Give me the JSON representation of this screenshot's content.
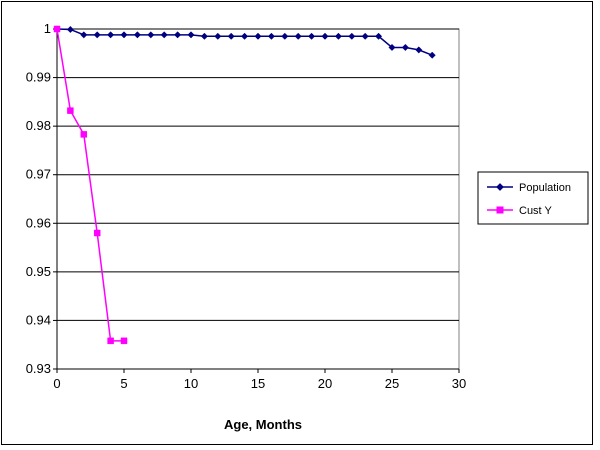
{
  "chart_data": {
    "type": "line",
    "title": "",
    "xlabel": "Age, Months",
    "ylabel": "",
    "xlim": [
      0,
      30
    ],
    "ylim": [
      0.93,
      1.0
    ],
    "xticks": [
      0,
      5,
      10,
      15,
      20,
      25,
      30
    ],
    "xtick_labels": [
      "0",
      "5",
      "10",
      "15",
      "20",
      "25",
      "30"
    ],
    "yticks": [
      0.93,
      0.94,
      0.95,
      0.96,
      0.97,
      0.98,
      0.99,
      1.0
    ],
    "ytick_labels": [
      "0.93",
      "0.94",
      "0.95",
      "0.96",
      "0.97",
      "0.98",
      "0.99",
      "1"
    ],
    "grid": "horizontal",
    "legend_position": "right",
    "series": [
      {
        "name": "Population",
        "color": "#000080",
        "marker": "diamond",
        "x": [
          0,
          1,
          2,
          3,
          4,
          5,
          6,
          7,
          8,
          9,
          10,
          11,
          12,
          13,
          14,
          15,
          16,
          17,
          18,
          19,
          20,
          21,
          22,
          23,
          24,
          25,
          26,
          27,
          28
        ],
        "y": [
          1.0,
          0.9999,
          0.9988,
          0.9988,
          0.9988,
          0.9988,
          0.9988,
          0.9988,
          0.9988,
          0.9988,
          0.9988,
          0.9985,
          0.9985,
          0.9985,
          0.9985,
          0.9985,
          0.9985,
          0.9985,
          0.9985,
          0.9985,
          0.9985,
          0.9985,
          0.9985,
          0.9985,
          0.9985,
          0.9962,
          0.9962,
          0.9957,
          0.9946
        ]
      },
      {
        "name": "Cust Y",
        "color": "#FF00FF",
        "marker": "square",
        "x": [
          0,
          1,
          2,
          3,
          4,
          5
        ],
        "y": [
          1.0,
          0.9832,
          0.9783,
          0.958,
          0.9358,
          0.9358
        ]
      }
    ]
  }
}
